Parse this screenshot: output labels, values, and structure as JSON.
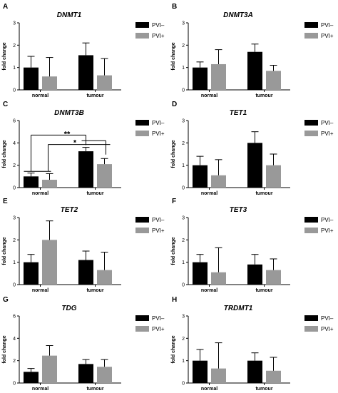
{
  "legend": {
    "series": [
      "PVI–",
      "PVI+"
    ],
    "colors": [
      "#000000",
      "#999999"
    ]
  },
  "ylabel": "fold change",
  "categories": [
    "normal",
    "tumour"
  ],
  "chart_data": [
    {
      "type": "bar",
      "panel": "A",
      "title": "DNMT1",
      "ylabel": "fold change",
      "categories": [
        "normal",
        "tumour"
      ],
      "ylim": [
        0,
        3
      ],
      "yticks": [
        0,
        1,
        2,
        3
      ],
      "series": [
        {
          "name": "PVI–",
          "values": [
            1.0,
            1.55
          ],
          "errors": [
            0.5,
            0.55
          ]
        },
        {
          "name": "PVI+",
          "values": [
            0.6,
            0.65
          ],
          "errors": [
            0.85,
            0.75
          ]
        }
      ],
      "annotations": []
    },
    {
      "type": "bar",
      "panel": "B",
      "title": "DNMT3A",
      "ylabel": "fold change",
      "categories": [
        "normal",
        "tumour"
      ],
      "ylim": [
        0,
        3
      ],
      "yticks": [
        0,
        1,
        2,
        3
      ],
      "series": [
        {
          "name": "PVI–",
          "values": [
            1.0,
            1.7
          ],
          "errors": [
            0.25,
            0.35
          ]
        },
        {
          "name": "PVI+",
          "values": [
            1.15,
            0.85
          ],
          "errors": [
            0.65,
            0.25
          ]
        }
      ],
      "annotations": []
    },
    {
      "type": "bar",
      "panel": "C",
      "title": "DNMT3B",
      "ylabel": "fold change",
      "categories": [
        "normal",
        "tumour"
      ],
      "ylim": [
        0,
        6
      ],
      "yticks": [
        0,
        2,
        4,
        6
      ],
      "series": [
        {
          "name": "PVI–",
          "values": [
            1.0,
            3.25
          ],
          "errors": [
            0.3,
            0.35
          ]
        },
        {
          "name": "PVI+",
          "values": [
            0.7,
            2.1
          ],
          "errors": [
            0.55,
            0.5
          ]
        }
      ],
      "annotations": [
        "**",
        "*"
      ]
    },
    {
      "type": "bar",
      "panel": "D",
      "title": "TET1",
      "ylabel": "fold change",
      "categories": [
        "normal",
        "tumour"
      ],
      "ylim": [
        0,
        3
      ],
      "yticks": [
        0,
        1,
        2,
        3
      ],
      "series": [
        {
          "name": "PVI–",
          "values": [
            1.0,
            2.0
          ],
          "errors": [
            0.4,
            0.5
          ]
        },
        {
          "name": "PVI+",
          "values": [
            0.55,
            1.0
          ],
          "errors": [
            0.7,
            0.5
          ]
        }
      ],
      "annotations": []
    },
    {
      "type": "bar",
      "panel": "E",
      "title": "TET2",
      "ylabel": "fold change",
      "categories": [
        "normal",
        "tumour"
      ],
      "ylim": [
        0,
        3
      ],
      "yticks": [
        0,
        1,
        2,
        3
      ],
      "series": [
        {
          "name": "PVI–",
          "values": [
            1.0,
            1.1
          ],
          "errors": [
            0.35,
            0.4
          ]
        },
        {
          "name": "PVI+",
          "values": [
            2.0,
            0.65
          ],
          "errors": [
            0.85,
            0.8
          ]
        }
      ],
      "annotations": []
    },
    {
      "type": "bar",
      "panel": "F",
      "title": "TET3",
      "ylabel": "fold change",
      "categories": [
        "normal",
        "tumour"
      ],
      "ylim": [
        0,
        3
      ],
      "yticks": [
        0,
        1,
        2,
        3
      ],
      "series": [
        {
          "name": "PVI–",
          "values": [
            1.0,
            0.9
          ],
          "errors": [
            0.35,
            0.45
          ]
        },
        {
          "name": "PVI+",
          "values": [
            0.55,
            0.65
          ],
          "errors": [
            1.1,
            0.5
          ]
        }
      ],
      "annotations": []
    },
    {
      "type": "bar",
      "panel": "G",
      "title": "TDG",
      "ylabel": "fold change",
      "categories": [
        "normal",
        "tumour"
      ],
      "ylim": [
        0,
        6
      ],
      "yticks": [
        0,
        2,
        4,
        6
      ],
      "series": [
        {
          "name": "PVI–",
          "values": [
            1.0,
            1.7
          ],
          "errors": [
            0.3,
            0.4
          ]
        },
        {
          "name": "PVI+",
          "values": [
            2.45,
            1.45
          ],
          "errors": [
            0.9,
            0.65
          ]
        }
      ],
      "annotations": []
    },
    {
      "type": "bar",
      "panel": "H",
      "title": "TRDMT1",
      "ylabel": "fold change",
      "categories": [
        "normal",
        "tumour"
      ],
      "ylim": [
        0,
        3
      ],
      "yticks": [
        0,
        1,
        2,
        3
      ],
      "series": [
        {
          "name": "PVI–",
          "values": [
            1.0,
            1.0
          ],
          "errors": [
            0.5,
            0.35
          ]
        },
        {
          "name": "PVI+",
          "values": [
            0.65,
            0.55
          ],
          "errors": [
            1.15,
            0.6
          ]
        }
      ],
      "annotations": []
    }
  ]
}
